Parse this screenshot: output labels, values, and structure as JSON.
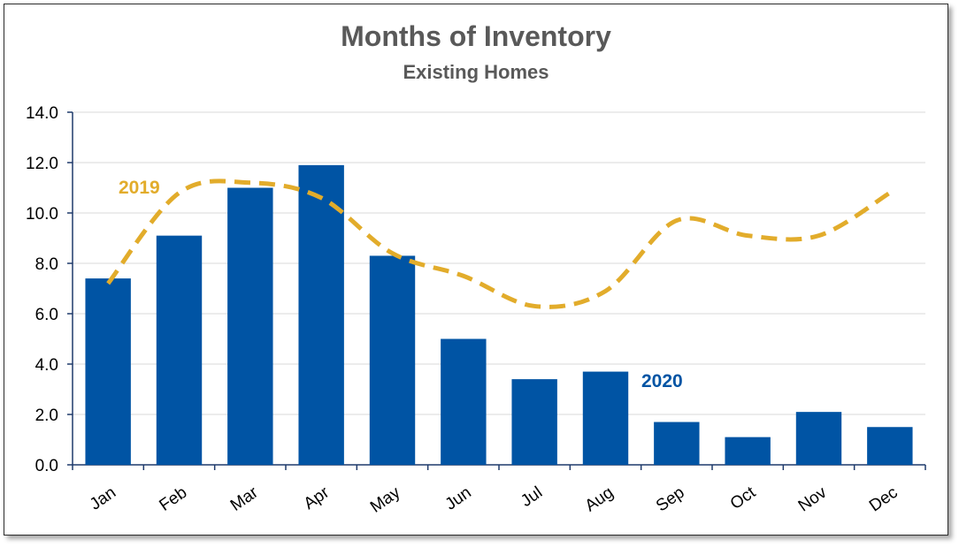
{
  "chart_data": {
    "type": "bar",
    "title": "Months of Inventory",
    "subtitle": "Existing Homes",
    "categories": [
      "Jan",
      "Feb",
      "Mar",
      "Apr",
      "May",
      "Jun",
      "Jul",
      "Aug",
      "Sep",
      "Oct",
      "Nov",
      "Dec"
    ],
    "ylim": [
      0,
      14
    ],
    "yticks": [
      "0.0",
      "2.0",
      "4.0",
      "6.0",
      "8.0",
      "10.0",
      "12.0",
      "14.0"
    ],
    "grid": true,
    "series": [
      {
        "name": "2020",
        "type": "bar",
        "color": "#0054a4",
        "values": [
          7.4,
          9.1,
          11.0,
          11.9,
          8.3,
          5.0,
          3.4,
          3.7,
          1.7,
          1.1,
          2.1,
          1.5
        ]
      },
      {
        "name": "2019",
        "type": "line",
        "style": "dashed",
        "color": "#e2ac2b",
        "values": [
          7.2,
          10.8,
          11.2,
          10.6,
          8.4,
          7.5,
          6.3,
          6.9,
          9.7,
          9.1,
          9.1,
          10.8
        ]
      }
    ]
  }
}
